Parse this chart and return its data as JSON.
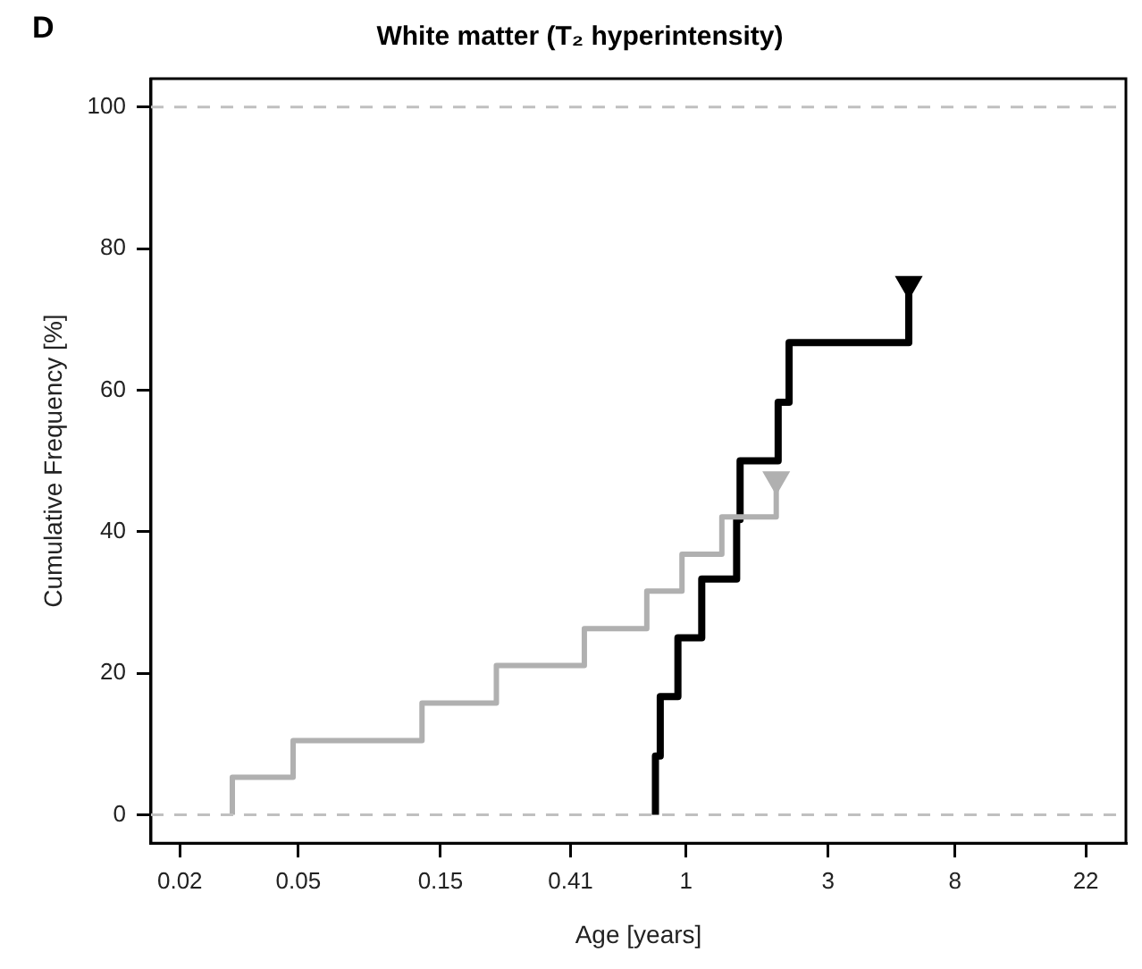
{
  "chart_data": {
    "type": "step",
    "title": "White matter (T₂ hyperintensity)",
    "xlabel": "Age [years]",
    "ylabel": "Cumulative Frequency [%]",
    "annotations": [
      "D"
    ],
    "series": [
      {
        "color": "#b0b0b0",
        "x": [
          0.03,
          0.03,
          0.048,
          0.13,
          0.231,
          0.456,
          0.739,
          0.97,
          1.32,
          2.01
        ],
        "values": [
          0,
          5.3,
          10.5,
          15.8,
          21.1,
          26.3,
          31.6,
          36.8,
          42.1,
          47.4
        ],
        "marker": "none"
      },
      {
        "color": "#000000",
        "x": [
          0.79,
          0.79,
          0.82,
          0.94,
          1.13,
          1.48,
          1.52,
          2.04,
          2.22,
          5.6
        ],
        "values": [
          0,
          8.3,
          16.7,
          25,
          33.3,
          41.7,
          50,
          58.3,
          66.7,
          75
        ],
        "marker": "none"
      },
      {
        "type": "scatter",
        "color": "#b0b0b0",
        "x": [
          2.01
        ],
        "values": [
          47.4
        ],
        "marker": "triangle"
      },
      {
        "type": "scatter",
        "color": "#000000",
        "x": [
          5.6
        ],
        "values": [
          75
        ],
        "marker": "triangle"
      }
    ],
    "log": "x",
    "xlim": [
      0.016,
      30
    ],
    "xticks": [
      0.02,
      0.05,
      0.15,
      0.41,
      1,
      3,
      8,
      22
    ],
    "ylim": [
      -4,
      104
    ],
    "yticks": [
      0,
      20,
      40,
      60,
      80,
      100
    ],
    "ref_lines": [
      {
        "axis": "y",
        "value": 0,
        "color": "#c0c0c0",
        "line_style": "dashed"
      },
      {
        "axis": "y",
        "value": 100,
        "color": "#c0c0c0",
        "line_style": "dashed"
      }
    ],
    "grid": false,
    "legend": false,
    "line_style": "solid"
  }
}
